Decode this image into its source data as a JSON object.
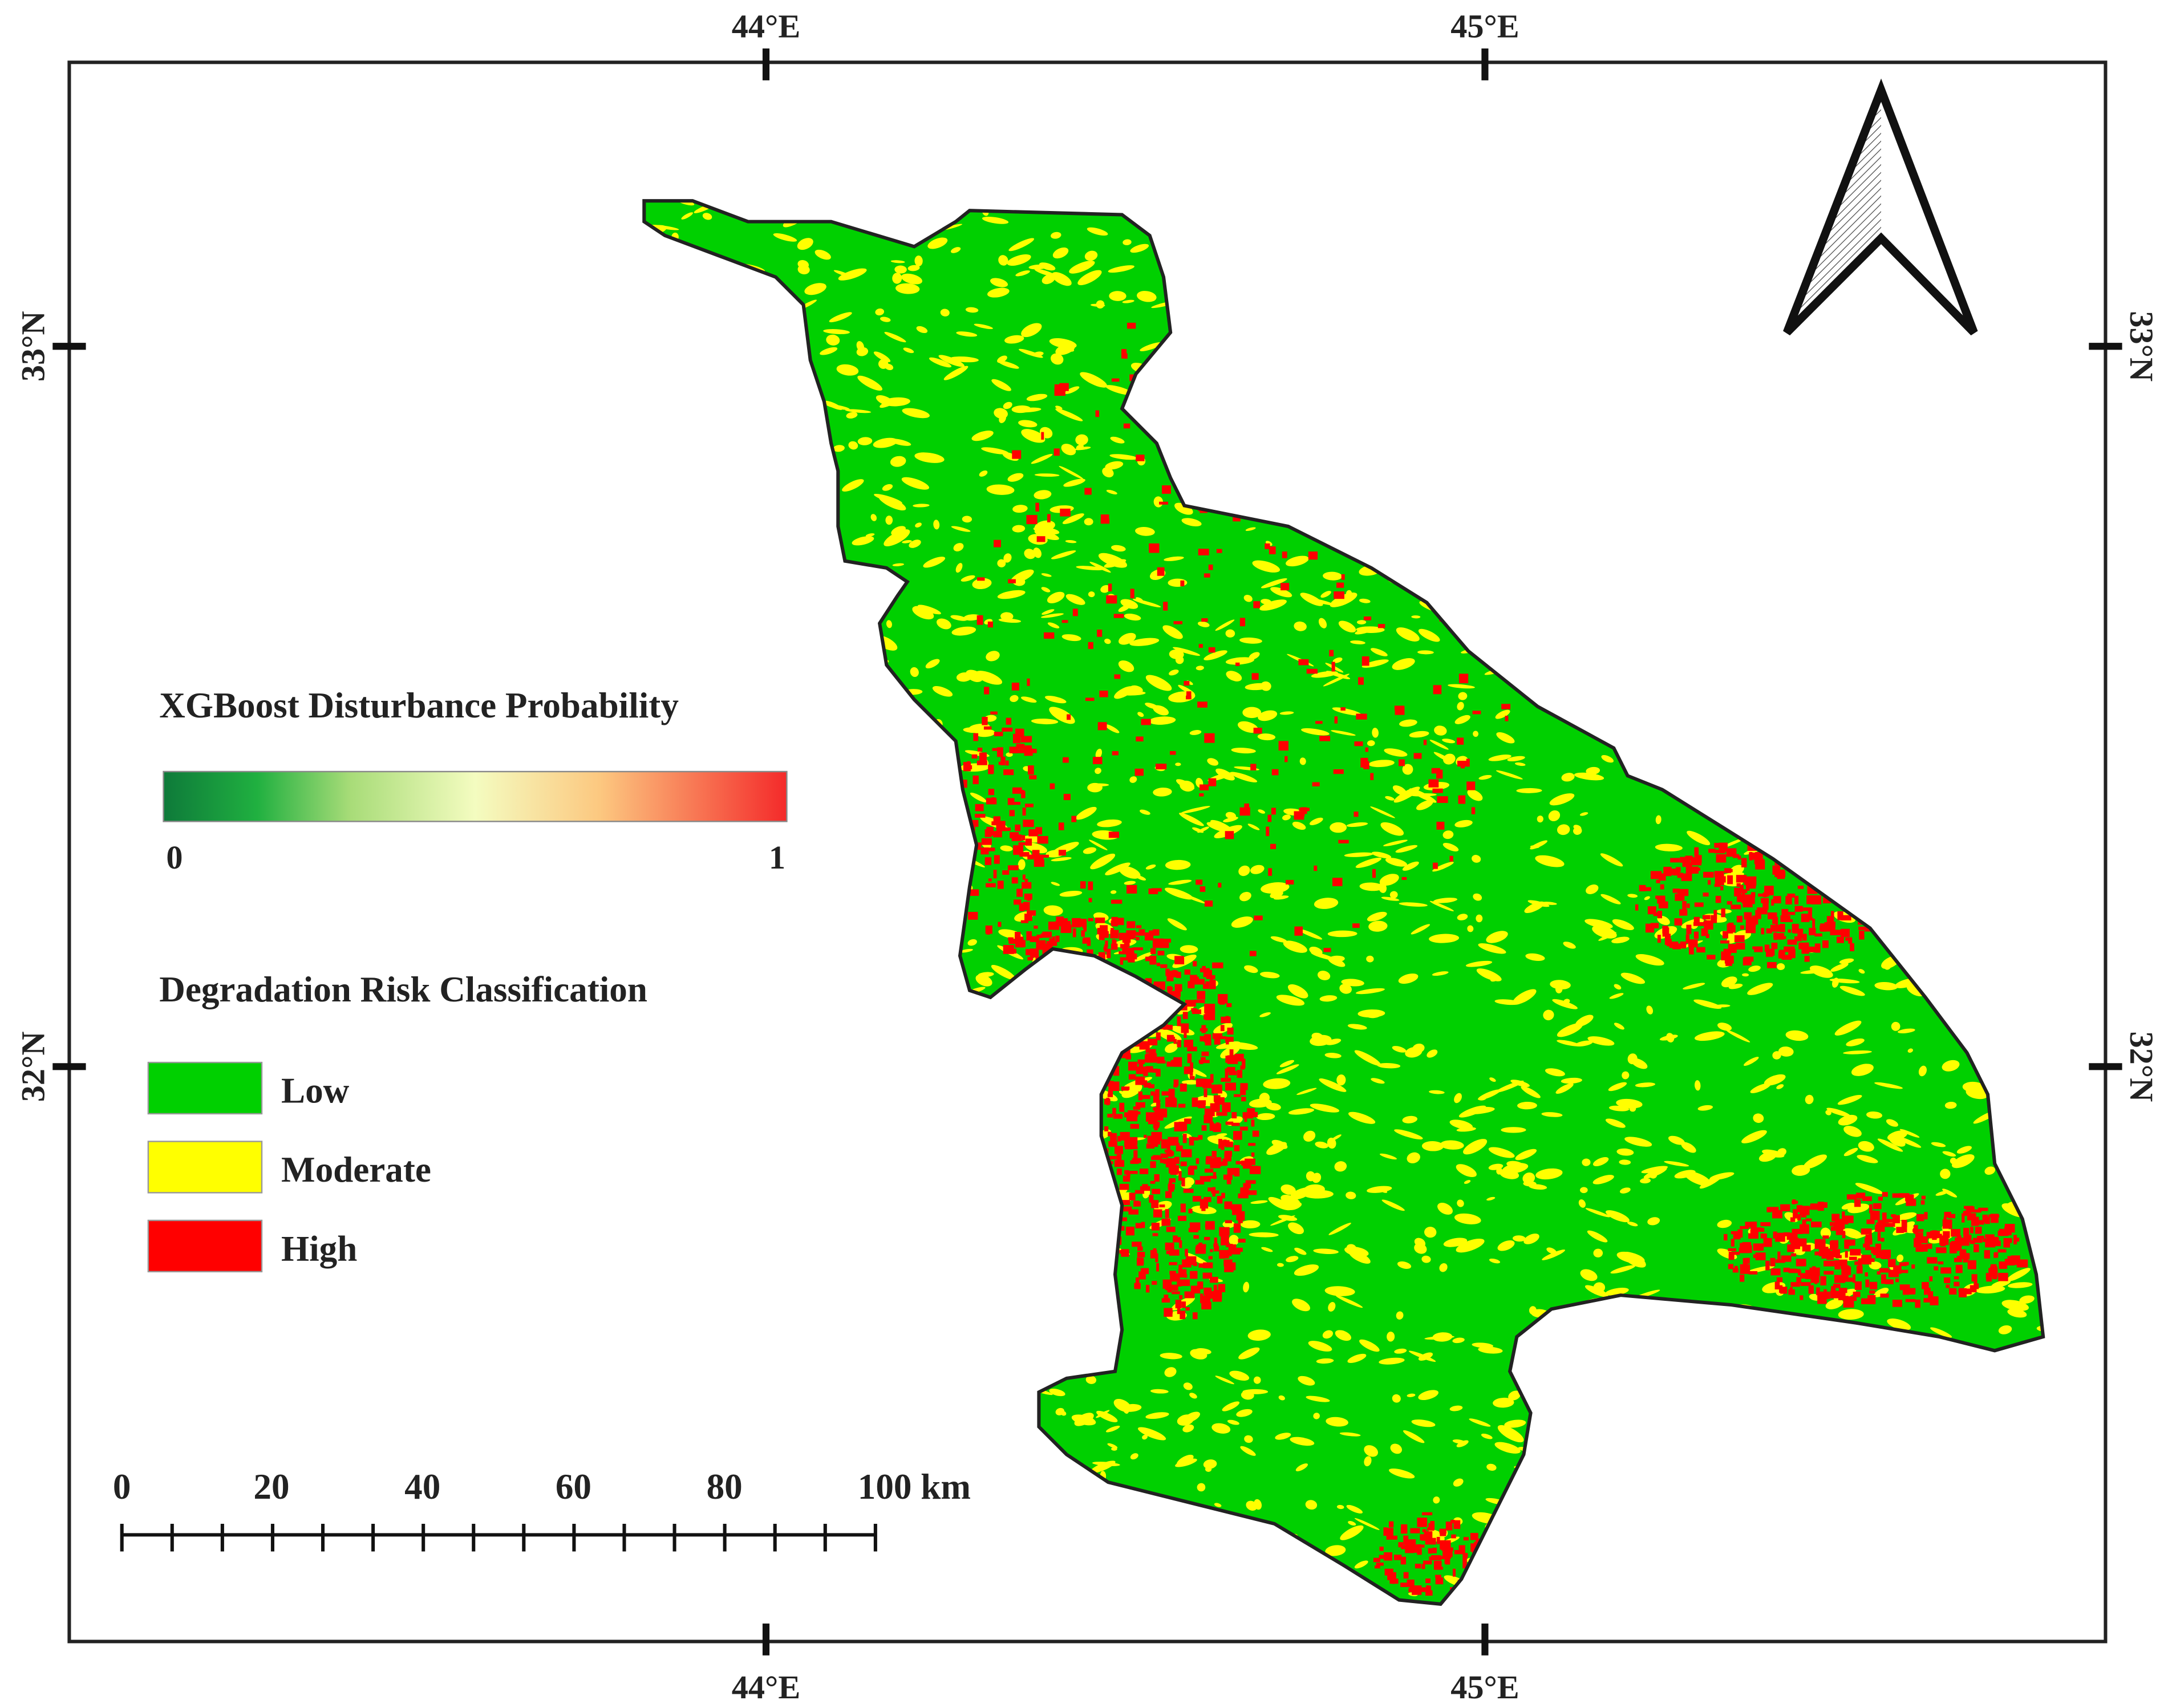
{
  "graticule": {
    "top": [
      "44°E",
      "45°E"
    ],
    "bottom": [
      "44°E",
      "45°E"
    ],
    "left": [
      "33°N",
      "32°N"
    ],
    "right": [
      "33°N",
      "32°N"
    ]
  },
  "legend": {
    "probability_title": "XGBoost Disturbance Probability",
    "probability_min": "0",
    "probability_max": "1",
    "classification_title": "Degradation Risk Classification",
    "classes": [
      {
        "label": "Low",
        "color": "#00d000"
      },
      {
        "label": "Moderate",
        "color": "#ffff00"
      },
      {
        "label": "High",
        "color": "#ff0000"
      }
    ]
  },
  "scale_bar": {
    "labels": [
      "0",
      "20",
      "40",
      "60",
      "80",
      "100 km"
    ]
  }
}
